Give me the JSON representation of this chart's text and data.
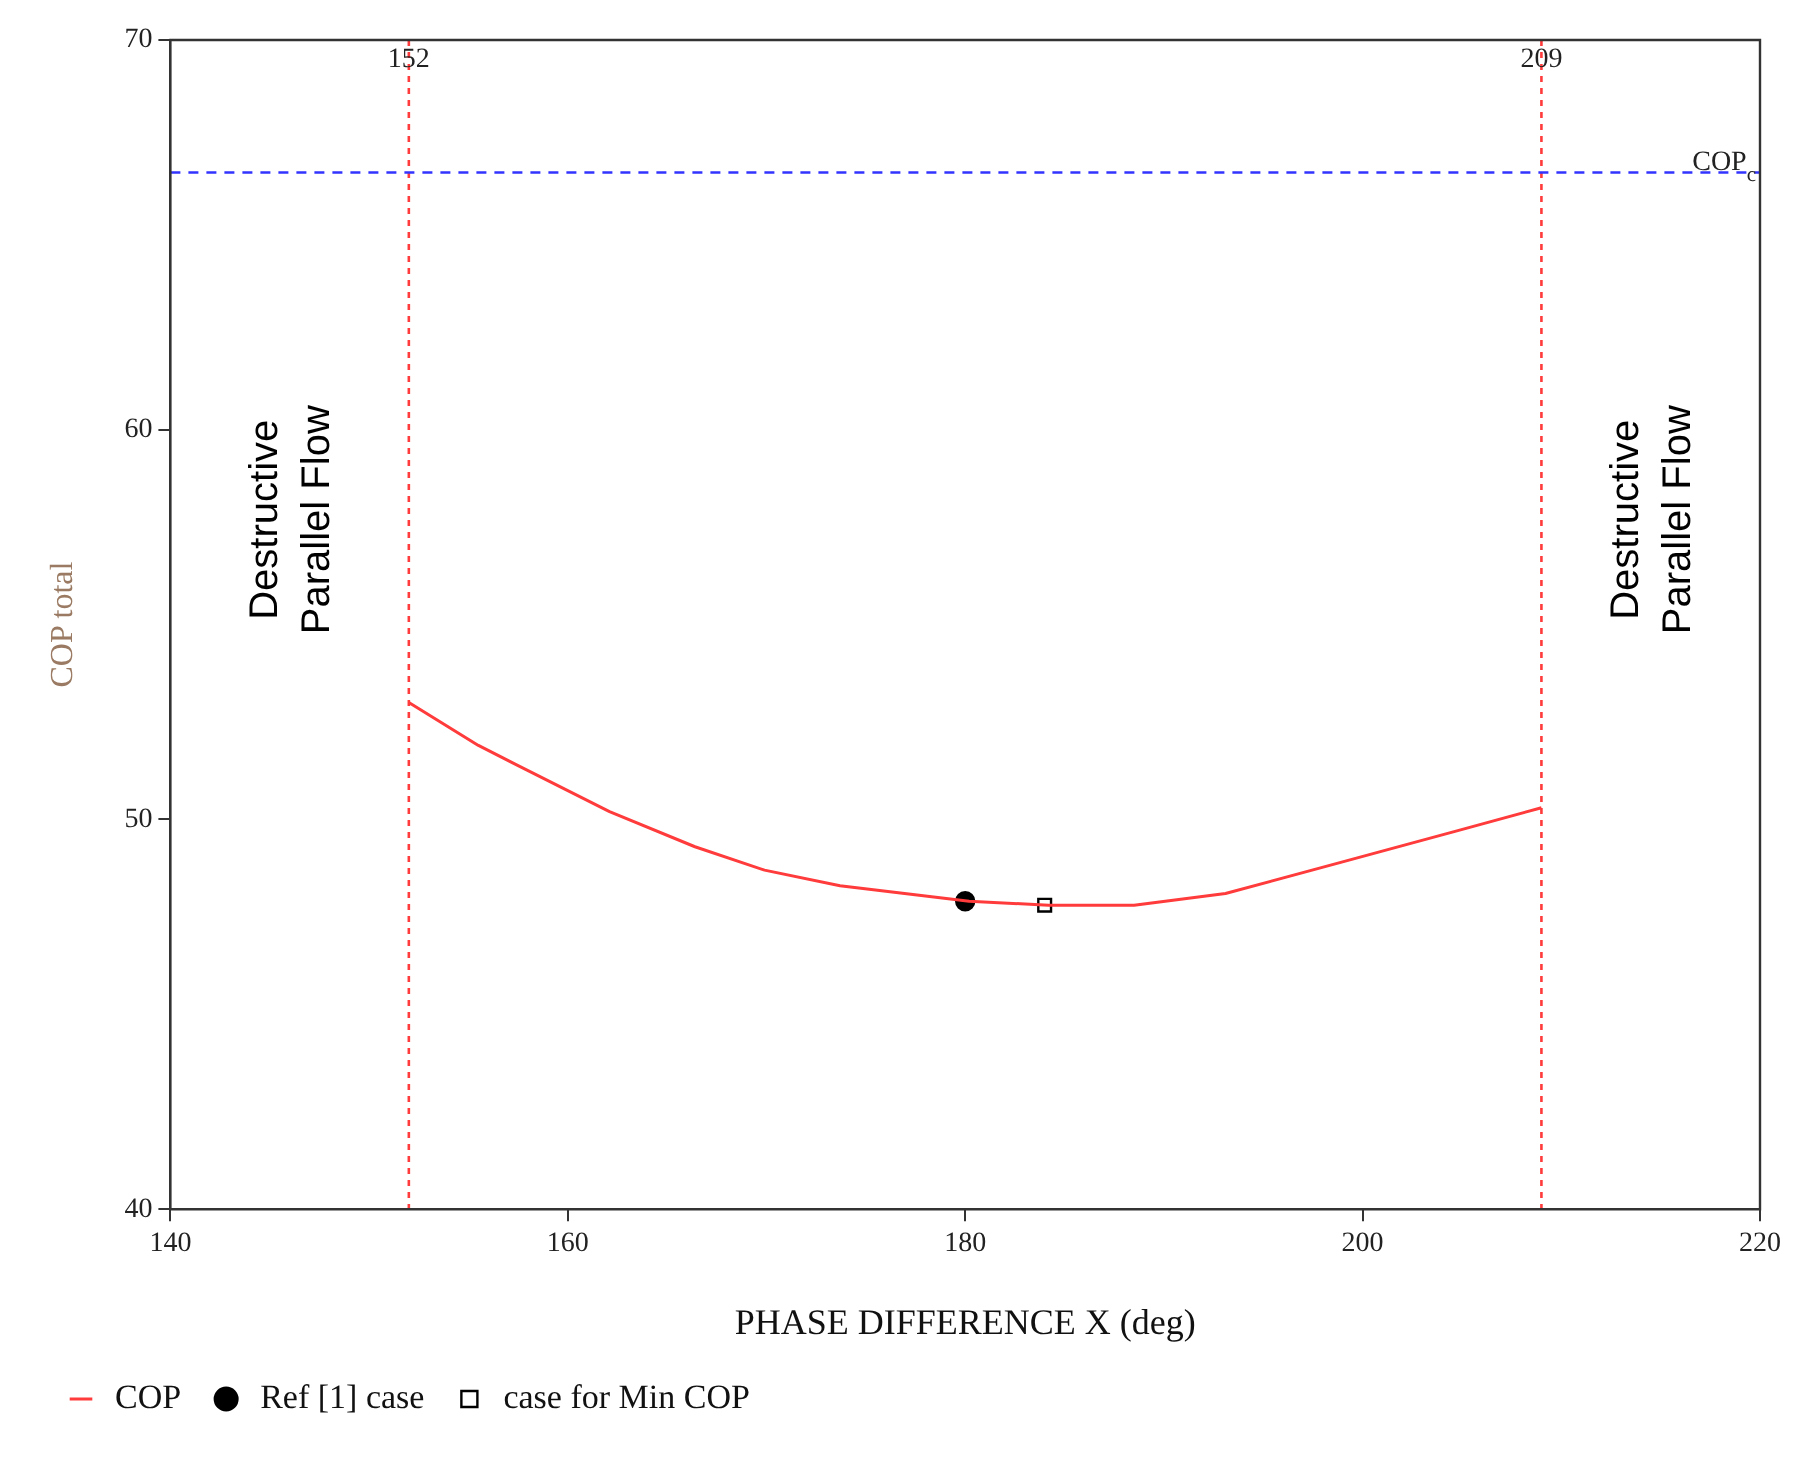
{
  "chart_data": {
    "type": "line",
    "xlabel": "PHASE DIFFERENCE X (deg)",
    "ylabel": "COP total",
    "xlim": [
      140,
      220
    ],
    "xticks": [
      140,
      160,
      180,
      200,
      220
    ],
    "ylim": [
      40,
      70
    ],
    "yticks": [
      40,
      50,
      60,
      70
    ],
    "grid": false,
    "legend": "bottom left",
    "series": [
      {
        "name": "COP",
        "color": "#ff3b3b",
        "marker": "none",
        "x": [
          152,
          155.5,
          158.2,
          162.1,
          166.4,
          169.9,
          173.7,
          180.2,
          184.2,
          188.5,
          193.1,
          198.9,
          204.7,
          209
        ],
        "values": [
          53.0,
          51.9,
          51.2,
          50.2,
          49.3,
          48.7,
          48.3,
          47.9,
          47.8,
          47.8,
          48.1,
          48.9,
          49.7,
          50.3
        ]
      },
      {
        "name": "Ref [1] case",
        "type": "scatter",
        "color": "#000000",
        "marker": "circle",
        "x": [
          180
        ],
        "values": [
          47.9
        ]
      },
      {
        "name": "case for Min COP",
        "type": "scatter",
        "color": "#000000",
        "marker": "square",
        "x": [
          184
        ],
        "values": [
          47.8
        ]
      }
    ],
    "ref_lines": [
      {
        "axis": "x",
        "value": 152,
        "label": "152",
        "color": "#ff3b3b",
        "line_style": "dotted"
      },
      {
        "axis": "x",
        "value": 209,
        "label": "209",
        "color": "#ff3b3b",
        "line_style": "dotted"
      },
      {
        "axis": "y",
        "value": 66.6,
        "label": "COP$_{c}$",
        "color": "#3333ff",
        "line_style": "dashed"
      }
    ],
    "annotations": [
      "Destructive Parallel Flow",
      "Destructive Parallel Flow"
    ]
  }
}
